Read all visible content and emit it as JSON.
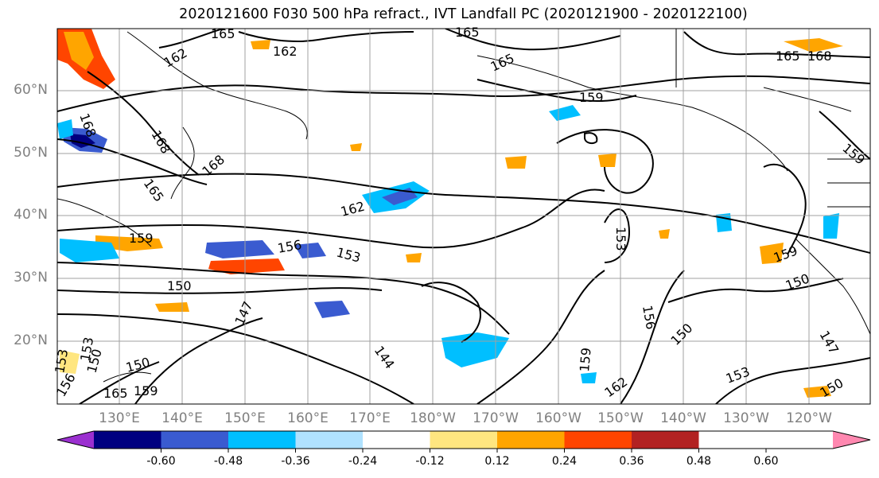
{
  "title": "2020121600 F030 500 hPa refract., IVT Landfall PC (2020121900 - 2020122100)",
  "lat_labels": [
    "60°N",
    "50°N",
    "40°N",
    "30°N",
    "20°N"
  ],
  "lon_labels": [
    "130°E",
    "140°E",
    "150°E",
    "160°E",
    "170°E",
    "180°W",
    "170°W",
    "160°W",
    "150°W",
    "140°W",
    "130°W",
    "120°W"
  ],
  "contour_labels": [
    "165",
    "162",
    "165",
    "165",
    "162",
    "168",
    "165",
    "168",
    "159",
    "165",
    "168",
    "168",
    "159",
    "162",
    "159",
    "156",
    "153",
    "150",
    "153",
    "147",
    "159",
    "150",
    "153",
    "150",
    "165",
    "159",
    "156",
    "150",
    "153",
    "144",
    "159",
    "162",
    "150",
    "147",
    "156",
    "153",
    "150"
  ],
  "colorbar": {
    "ticks": [
      "-0.60",
      "-0.48",
      "-0.36",
      "-0.24",
      "-0.12",
      "0.12",
      "0.24",
      "0.36",
      "0.48",
      "0.60"
    ],
    "colors": [
      "#9b30d0",
      "#000080",
      "#3a5bd0",
      "#00bfff",
      "#b0e2ff",
      "#ffffff",
      "#ffe680",
      "#ffa500",
      "#ff4500",
      "#b22222",
      "#ff88b0"
    ]
  }
}
